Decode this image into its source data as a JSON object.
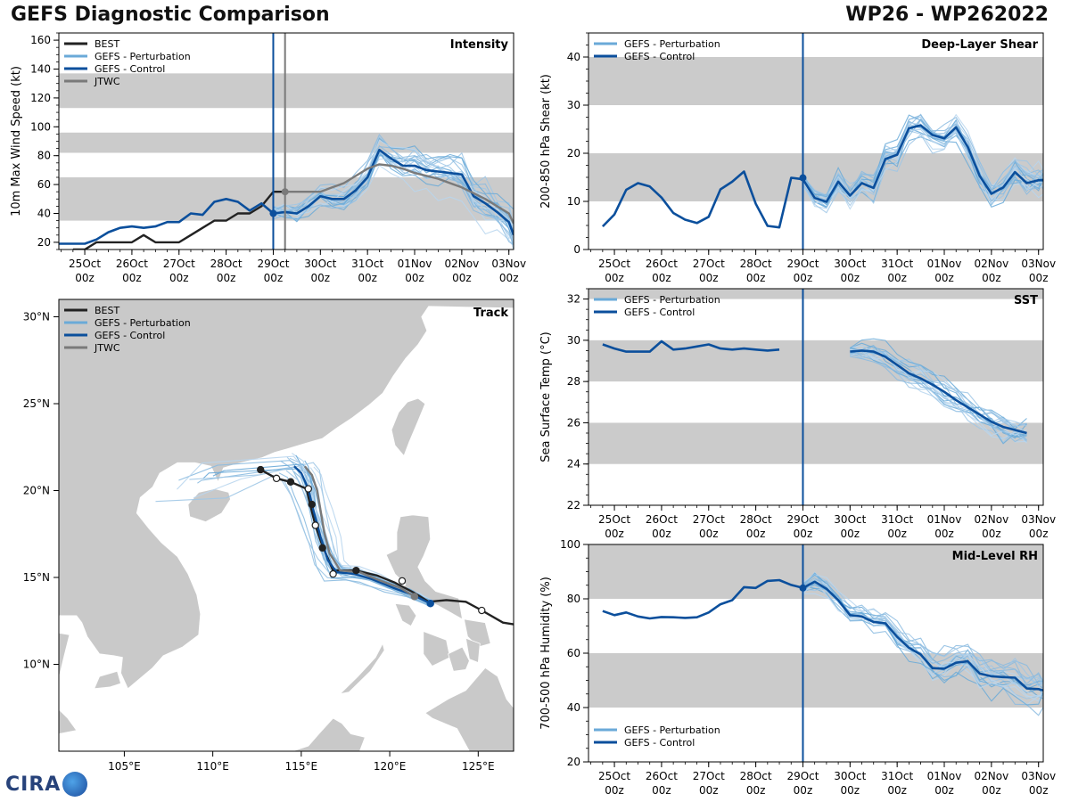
{
  "header": {
    "title_left": "GEFS Diagnostic Comparison",
    "title_right": "WP26 - WP262022"
  },
  "colors": {
    "best": "#222222",
    "pert": "#6aaad8",
    "control": "#0b4f9c",
    "jtwc": "#7a7a7a",
    "band": "#cbcbcb",
    "land": "#c9c9c9"
  },
  "time_axis": {
    "labels": [
      "25Oct",
      "26Oct",
      "27Oct",
      "28Oct",
      "29Oct",
      "30Oct",
      "31Oct",
      "01Nov",
      "02Nov",
      "03Nov"
    ],
    "sublabel": "00z",
    "start_day": 24.45,
    "end_day": 34.1,
    "init_day": 29
  },
  "logo": {
    "text": "CIRA"
  },
  "chart_data": [
    {
      "id": "intensity",
      "type": "line",
      "title": "Intensity",
      "ylabel": "10m Max Wind Speed (kt)",
      "ylim": [
        15,
        165
      ],
      "yticks": [
        20,
        40,
        60,
        80,
        100,
        120,
        140,
        160
      ],
      "bands": [
        [
          35,
          65
        ],
        [
          82,
          96
        ],
        [
          113,
          137
        ]
      ],
      "vlines": [
        {
          "day": 29,
          "color": "control"
        },
        {
          "day": 29.25,
          "color": "jtwc"
        }
      ],
      "legend": [
        "BEST",
        "GEFS - Perturbation",
        "GEFS - Control",
        "JTWC"
      ],
      "series": [
        {
          "name": "BEST",
          "color": "best",
          "x": [
            24.75,
            25,
            25.25,
            25.5,
            25.75,
            26,
            26.25,
            26.5,
            26.75,
            27,
            27.25,
            27.5,
            27.75,
            28,
            28.25,
            28.5,
            28.75,
            29,
            29.25
          ],
          "y": [
            15,
            15,
            20,
            20,
            20,
            20,
            25,
            20,
            20,
            20,
            25,
            30,
            35,
            35,
            40,
            40,
            45,
            55,
            55
          ]
        },
        {
          "name": "GEFS - Control",
          "color": "control",
          "x": [
            24.45,
            24.75,
            25,
            25.25,
            25.5,
            25.75,
            26,
            26.25,
            26.5,
            26.75,
            27,
            27.25,
            27.5,
            27.75,
            28,
            28.25,
            28.5,
            28.75,
            29,
            29.25,
            29.5,
            29.75,
            30,
            30.25,
            30.5,
            30.75,
            31,
            31.25,
            31.5,
            31.75,
            32,
            32.25,
            32.5,
            32.75,
            33,
            33.25,
            33.5,
            33.75,
            34,
            34.1
          ],
          "y": [
            19,
            19,
            19,
            22,
            27,
            30,
            31,
            30,
            31,
            34,
            34,
            40,
            39,
            48,
            50,
            48,
            42,
            47,
            40,
            41,
            40,
            45,
            52,
            50,
            50,
            56,
            65,
            84,
            78,
            73,
            73,
            70,
            69,
            68,
            67,
            52,
            47,
            41,
            34,
            25
          ]
        },
        {
          "name": "JTWC",
          "color": "jtwc",
          "x": [
            29.25,
            29.5,
            29.75,
            30,
            30.25,
            30.5,
            30.75,
            31,
            31.25,
            31.5,
            31.75,
            32,
            32.5,
            33,
            33.5,
            34,
            34.1
          ],
          "y": [
            55,
            55,
            55,
            55,
            58,
            61,
            66,
            71,
            74,
            73,
            71,
            68,
            64,
            58,
            50,
            40,
            33
          ]
        }
      ],
      "markers": [
        {
          "day": 29,
          "value": 40,
          "color": "control"
        },
        {
          "day": 29.25,
          "value": 55,
          "color": "jtwc"
        }
      ]
    },
    {
      "id": "shear",
      "type": "line",
      "title": "Deep-Layer Shear",
      "ylabel": "200-850 hPa Shear (kt)",
      "ylim": [
        0,
        45
      ],
      "yticks": [
        0,
        10,
        20,
        30,
        40
      ],
      "bands": [
        [
          10,
          20
        ],
        [
          30,
          40
        ]
      ],
      "vlines": [
        {
          "day": 29,
          "color": "control"
        }
      ],
      "legend": [
        "GEFS - Perturbation",
        "GEFS - Control"
      ],
      "series": [
        {
          "name": "GEFS - Control",
          "color": "control",
          "x": [
            24.75,
            25,
            25.25,
            25.5,
            25.75,
            26,
            26.25,
            26.5,
            26.75,
            27,
            27.25,
            27.5,
            27.75,
            28,
            28.25,
            28.5,
            28.75,
            29,
            29.25,
            29.5,
            29.75,
            30,
            30.25,
            30.5,
            30.75,
            31,
            31.25,
            31.5,
            31.75,
            32,
            32.25,
            32.5,
            32.75,
            33,
            33.25,
            33.5,
            33.75,
            34,
            34.1
          ],
          "y": [
            4.8,
            7.3,
            12.4,
            13.8,
            13.1,
            10.8,
            7.6,
            6.2,
            5.5,
            6.8,
            12.5,
            14.1,
            16.2,
            9.5,
            4.9,
            4.6,
            14.9,
            14.6,
            10.7,
            9.9,
            14.1,
            11.2,
            13.8,
            12.8,
            18.8,
            19.7,
            25.2,
            25.8,
            23.8,
            23.1,
            25.4,
            21.3,
            15.3,
            11.6,
            12.9,
            16.1,
            13.8,
            14.4,
            14.4
          ]
        }
      ],
      "markers": [
        {
          "day": 29,
          "value": 14.9,
          "color": "control"
        }
      ]
    },
    {
      "id": "sst",
      "type": "line",
      "title": "SST",
      "ylabel": "Sea Surface Temp (°C)",
      "ylim": [
        22,
        32.5
      ],
      "yticks": [
        22,
        24,
        26,
        28,
        30,
        32
      ],
      "bands": [
        [
          24,
          26
        ],
        [
          28,
          30
        ],
        [
          32,
          32.5
        ]
      ],
      "vlines": [
        {
          "day": 29,
          "color": "control"
        }
      ],
      "legend": [
        "GEFS - Perturbation",
        "GEFS - Control"
      ],
      "series": [
        {
          "name": "GEFS - Control",
          "color": "control",
          "x": [
            24.75,
            25,
            25.25,
            25.5,
            25.75,
            26,
            26.25,
            26.5,
            26.75,
            27,
            27.25,
            27.5,
            27.75,
            28,
            28.25,
            28.5
          ],
          "y": [
            29.8,
            29.6,
            29.45,
            29.45,
            29.45,
            29.95,
            29.55,
            29.6,
            29.7,
            29.8,
            29.6,
            29.55,
            29.6,
            29.55,
            29.5,
            29.55
          ]
        },
        {
          "name": "GEFS - Control (forecast)",
          "color": "control",
          "x": [
            30,
            30.25,
            30.5,
            30.75,
            31,
            31.25,
            31.5,
            31.75,
            32,
            32.25,
            32.5,
            32.75,
            33,
            33.25,
            33.5,
            33.75
          ],
          "y": [
            29.45,
            29.5,
            29.45,
            29.2,
            28.8,
            28.4,
            28.15,
            27.85,
            27.5,
            27.1,
            26.75,
            26.4,
            26.05,
            25.8,
            25.65,
            25.5
          ]
        }
      ]
    },
    {
      "id": "rh",
      "type": "line",
      "title": "Mid-Level RH",
      "ylabel": "700-500 hPa Humidity (%)",
      "ylim": [
        20,
        100
      ],
      "yticks": [
        20,
        40,
        60,
        80,
        100
      ],
      "bands": [
        [
          40,
          60
        ],
        [
          80,
          100
        ]
      ],
      "vlines": [
        {
          "day": 29,
          "color": "control"
        }
      ],
      "legend": [
        "GEFS - Perturbation",
        "GEFS - Control"
      ],
      "series": [
        {
          "name": "GEFS - Control",
          "color": "control",
          "x": [
            24.75,
            25,
            25.25,
            25.5,
            25.75,
            26,
            26.25,
            26.5,
            26.75,
            27,
            27.25,
            27.5,
            27.75,
            28,
            28.25,
            28.5,
            28.75,
            29,
            29.25,
            29.5,
            29.75,
            30,
            30.25,
            30.5,
            30.75,
            31,
            31.25,
            31.5,
            31.75,
            32,
            32.25,
            32.5,
            32.75,
            33,
            33.25,
            33.5,
            33.75,
            34,
            34.1
          ],
          "y": [
            75.5,
            74,
            75,
            73.5,
            72.8,
            73.3,
            73.2,
            73,
            73.2,
            75,
            78,
            79.5,
            84.3,
            84,
            86.6,
            86.9,
            85.1,
            84,
            86.3,
            83.7,
            79.5,
            74,
            73.5,
            71.5,
            71,
            66,
            62,
            59.5,
            54.5,
            54.3,
            56.5,
            57,
            52.5,
            51.5,
            51.2,
            51,
            47,
            46.8,
            46.3
          ]
        }
      ],
      "markers": [
        {
          "day": 29,
          "value": 84,
          "color": "control"
        }
      ]
    },
    {
      "id": "track",
      "type": "scatter",
      "title": "Track",
      "lon_range": [
        101.3,
        127
      ],
      "lat_range": [
        5,
        31
      ],
      "xticks": [
        105,
        110,
        115,
        120,
        125
      ],
      "xticklabels": [
        "105°E",
        "110°E",
        "115°E",
        "120°E",
        "125°E"
      ],
      "yticks": [
        10,
        15,
        20,
        25,
        30
      ],
      "yticklabels": [
        "10°N",
        "15°N",
        "20°N",
        "25°N",
        "30°N"
      ],
      "legend": [
        "BEST",
        "GEFS - Perturbation",
        "GEFS - Control",
        "JTWC"
      ],
      "series": [
        {
          "name": "BEST",
          "color": "best",
          "lon": [
            127,
            126.4,
            125.2,
            124.3,
            123.2,
            122.2,
            121.4,
            120.3,
            119.3,
            118.1,
            116.8,
            116.2,
            115.8,
            115.5,
            115.3,
            114.4,
            113.6,
            112.7
          ],
          "lat": [
            12.3,
            12.4,
            13.1,
            13.6,
            13.7,
            13.6,
            14.1,
            14.7,
            15.1,
            15.4,
            15.4,
            16.8,
            18.0,
            19.2,
            20.1,
            20.5,
            20.7,
            21.2
          ]
        },
        {
          "name": "GEFS - Control",
          "color": "control",
          "lon": [
            122.3,
            121.3,
            120.2,
            119.0,
            118.0,
            117.0,
            116.5,
            116.1,
            115.7,
            115.4,
            115.0,
            114.6
          ],
          "lat": [
            13.5,
            14.0,
            14.4,
            14.9,
            15.2,
            15.3,
            16.0,
            17.3,
            18.8,
            20.1,
            21.0,
            21.4
          ]
        },
        {
          "name": "JTWC",
          "color": "jtwc",
          "lon": [
            121.4,
            120.6,
            119.5,
            118.3,
            117.2,
            116.6,
            116.3,
            116.1,
            115.9,
            115.6,
            115.2
          ],
          "lat": [
            13.9,
            14.4,
            14.8,
            15.3,
            15.4,
            16.4,
            17.6,
            18.8,
            20.0,
            20.9,
            21.4
          ]
        }
      ],
      "markers": [
        {
          "lon": 125.2,
          "lat": 13.1,
          "fill": "white",
          "edge": "best"
        },
        {
          "lon": 122.3,
          "lat": 13.5,
          "fill": "control",
          "edge": "control"
        },
        {
          "lon": 121.4,
          "lat": 13.9,
          "fill": "jtwc",
          "edge": "jtwc"
        },
        {
          "lon": 120.7,
          "lat": 14.8,
          "fill": "white",
          "edge": "best"
        },
        {
          "lon": 118.1,
          "lat": 15.4,
          "fill": "best",
          "edge": "best"
        },
        {
          "lon": 116.8,
          "lat": 15.2,
          "fill": "white",
          "edge": "best"
        },
        {
          "lon": 116.2,
          "lat": 16.7,
          "fill": "best",
          "edge": "best"
        },
        {
          "lon": 115.8,
          "lat": 18.0,
          "fill": "white",
          "edge": "best"
        },
        {
          "lon": 115.6,
          "lat": 19.2,
          "fill": "best",
          "edge": "best"
        },
        {
          "lon": 115.4,
          "lat": 20.1,
          "fill": "white",
          "edge": "best"
        },
        {
          "lon": 114.4,
          "lat": 20.5,
          "fill": "best",
          "edge": "best"
        },
        {
          "lon": 113.6,
          "lat": 20.7,
          "fill": "white",
          "edge": "best"
        },
        {
          "lon": 112.7,
          "lat": 21.2,
          "fill": "best",
          "edge": "best"
        }
      ]
    }
  ]
}
